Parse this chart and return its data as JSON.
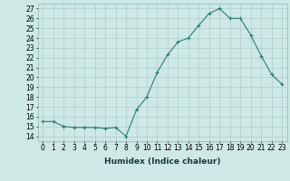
{
  "x": [
    0,
    1,
    2,
    3,
    4,
    5,
    6,
    7,
    8,
    9,
    10,
    11,
    12,
    13,
    14,
    15,
    16,
    17,
    18,
    19,
    20,
    21,
    22,
    23
  ],
  "y": [
    15.5,
    15.5,
    15.0,
    14.9,
    14.9,
    14.9,
    14.8,
    14.9,
    14.0,
    16.7,
    18.0,
    20.5,
    22.3,
    23.6,
    24.0,
    25.3,
    26.5,
    27.0,
    26.0,
    26.0,
    24.3,
    22.2,
    20.3,
    19.3
  ],
  "line_color": "#2e7d6e",
  "marker": "+",
  "bg_color": "#cde8e5",
  "grid_color": "#b0cfc9",
  "xlabel": "Humidex (Indice chaleur)",
  "ylim": [
    13.5,
    27.5
  ],
  "xlim": [
    -0.5,
    23.5
  ],
  "yticks": [
    14,
    15,
    16,
    17,
    18,
    19,
    20,
    21,
    22,
    23,
    24,
    25,
    26,
    27
  ],
  "xticks": [
    0,
    1,
    2,
    3,
    4,
    5,
    6,
    7,
    8,
    9,
    10,
    11,
    12,
    13,
    14,
    15,
    16,
    17,
    18,
    19,
    20,
    21,
    22,
    23
  ],
  "xtick_labels": [
    "0",
    "1",
    "2",
    "3",
    "4",
    "5",
    "6",
    "7",
    "8",
    "9",
    "10",
    "11",
    "12",
    "13",
    "14",
    "15",
    "16",
    "17",
    "18",
    "19",
    "20",
    "21",
    "22",
    "23"
  ],
  "xlabel_fontsize": 6.5,
  "tick_fontsize": 5.5
}
